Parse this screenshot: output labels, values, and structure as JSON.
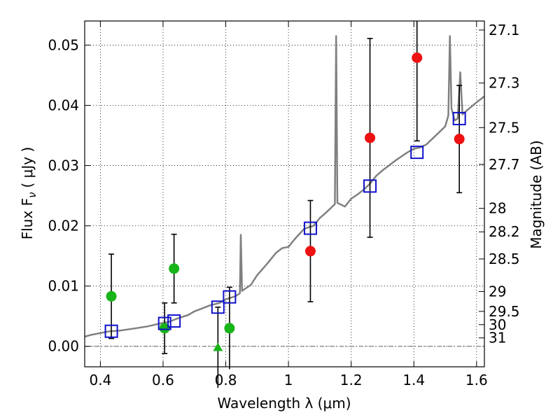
{
  "chart_data": {
    "type": "scatter",
    "xlabel": "Wavelength  λ (μm)",
    "ylabel": "Flux  F",
    "ylabel_symbol": "ν",
    "ylabel_unit": "( μJy )",
    "y2label": "Magnitude (AB)",
    "xlim": [
      0.35,
      1.625
    ],
    "ylim": [
      -0.0034,
      0.054
    ],
    "grid": true,
    "x_ticks": [
      {
        "value": 0.4,
        "label": "0.4"
      },
      {
        "value": 0.6,
        "label": "0.6"
      },
      {
        "value": 0.8,
        "label": "0.8"
      },
      {
        "value": 1.0,
        "label": "1"
      },
      {
        "value": 1.2,
        "label": "1.2"
      },
      {
        "value": 1.4,
        "label": "1.4"
      },
      {
        "value": 1.6,
        "label": "1.6"
      }
    ],
    "y_ticks": [
      {
        "value": 0.0,
        "label": "0.00"
      },
      {
        "value": 0.01,
        "label": "0.01"
      },
      {
        "value": 0.02,
        "label": "0.02"
      },
      {
        "value": 0.03,
        "label": "0.03"
      },
      {
        "value": 0.04,
        "label": "0.04"
      },
      {
        "value": 0.05,
        "label": "0.05"
      }
    ],
    "y2_ticks": [
      {
        "flux": 0.0525,
        "label": "27.1"
      },
      {
        "flux": 0.0437,
        "label": "27.3"
      },
      {
        "flux": 0.0363,
        "label": "27.5"
      },
      {
        "flux": 0.0302,
        "label": "27.7"
      },
      {
        "flux": 0.0229,
        "label": "28"
      },
      {
        "flux": 0.019,
        "label": "28.2"
      },
      {
        "flux": 0.0145,
        "label": "28.5"
      },
      {
        "flux": 0.0091,
        "label": "29"
      },
      {
        "flux": 0.0058,
        "label": "29.5"
      },
      {
        "flux": 0.0036,
        "label": "30"
      },
      {
        "flux": 0.0014,
        "label": "31"
      }
    ],
    "model_sed": {
      "color": "#808080",
      "points": [
        [
          0.35,
          0.0016
        ],
        [
          0.37,
          0.0019
        ],
        [
          0.4,
          0.0022
        ],
        [
          0.43,
          0.0025
        ],
        [
          0.46,
          0.0026
        ],
        [
          0.5,
          0.0029
        ],
        [
          0.55,
          0.0033
        ],
        [
          0.6,
          0.0039
        ],
        [
          0.62,
          0.0041
        ],
        [
          0.65,
          0.0047
        ],
        [
          0.68,
          0.0052
        ],
        [
          0.7,
          0.0058
        ],
        [
          0.72,
          0.0062
        ],
        [
          0.75,
          0.0068
        ],
        [
          0.78,
          0.0072
        ],
        [
          0.8,
          0.0078
        ],
        [
          0.83,
          0.0083
        ],
        [
          0.845,
          0.0088
        ],
        [
          0.848,
          0.0185
        ],
        [
          0.852,
          0.0092
        ],
        [
          0.86,
          0.0095
        ],
        [
          0.88,
          0.0102
        ],
        [
          0.9,
          0.0118
        ],
        [
          0.92,
          0.013
        ],
        [
          0.94,
          0.0142
        ],
        [
          0.96,
          0.0155
        ],
        [
          0.98,
          0.0163
        ],
        [
          1.0,
          0.0165
        ],
        [
          1.02,
          0.0178
        ],
        [
          1.05,
          0.0195
        ],
        [
          1.08,
          0.02
        ],
        [
          1.1,
          0.0213
        ],
        [
          1.12,
          0.0222
        ],
        [
          1.14,
          0.0232
        ],
        [
          1.148,
          0.0236
        ],
        [
          1.152,
          0.0515
        ],
        [
          1.156,
          0.0238
        ],
        [
          1.18,
          0.0232
        ],
        [
          1.2,
          0.0245
        ],
        [
          1.22,
          0.0252
        ],
        [
          1.24,
          0.026
        ],
        [
          1.26,
          0.027
        ],
        [
          1.28,
          0.0283
        ],
        [
          1.3,
          0.0292
        ],
        [
          1.32,
          0.03
        ],
        [
          1.34,
          0.0308
        ],
        [
          1.36,
          0.0315
        ],
        [
          1.38,
          0.0322
        ],
        [
          1.4,
          0.0328
        ],
        [
          1.42,
          0.033
        ],
        [
          1.44,
          0.0335
        ],
        [
          1.46,
          0.0345
        ],
        [
          1.48,
          0.0355
        ],
        [
          1.5,
          0.0365
        ],
        [
          1.51,
          0.0383
        ],
        [
          1.515,
          0.0515
        ],
        [
          1.52,
          0.0395
        ],
        [
          1.53,
          0.0375
        ],
        [
          1.54,
          0.0378
        ],
        [
          1.548,
          0.0455
        ],
        [
          1.555,
          0.0385
        ],
        [
          1.57,
          0.0392
        ],
        [
          1.6,
          0.0405
        ],
        [
          1.625,
          0.0415
        ]
      ]
    },
    "series": [
      {
        "marker": "circle",
        "color": "#18b418",
        "points": [
          {
            "x": 0.435,
            "y": 0.0083,
            "err": 0.007
          },
          {
            "x": 0.605,
            "y": 0.003,
            "err": 0.0042
          },
          {
            "x": 0.635,
            "y": 0.0129,
            "err": 0.0057
          },
          {
            "x": 0.812,
            "y": 0.003,
            "err": 0.0068
          }
        ]
      },
      {
        "marker": "triangle",
        "color": "#18b418",
        "points": [
          {
            "x": 0.775,
            "y": -0.0002,
            "err": 0.0067
          }
        ]
      },
      {
        "marker": "circle",
        "color": "#ee1111",
        "points": [
          {
            "x": 1.07,
            "y": 0.0158,
            "err": 0.0084
          },
          {
            "x": 1.26,
            "y": 0.0346,
            "err": 0.0165
          },
          {
            "x": 1.41,
            "y": 0.0479,
            "err": 0.0138
          },
          {
            "x": 1.545,
            "y": 0.0344,
            "err": 0.0089
          }
        ]
      },
      {
        "marker": "open-square",
        "color": "#1010cc",
        "points": [
          {
            "x": 0.435,
            "y": 0.0025
          },
          {
            "x": 0.605,
            "y": 0.0038
          },
          {
            "x": 0.635,
            "y": 0.0042
          },
          {
            "x": 0.775,
            "y": 0.0065
          },
          {
            "x": 0.812,
            "y": 0.0082
          },
          {
            "x": 1.07,
            "y": 0.0196
          },
          {
            "x": 1.26,
            "y": 0.0266
          },
          {
            "x": 1.41,
            "y": 0.0322
          },
          {
            "x": 1.545,
            "y": 0.0378
          }
        ]
      }
    ]
  }
}
